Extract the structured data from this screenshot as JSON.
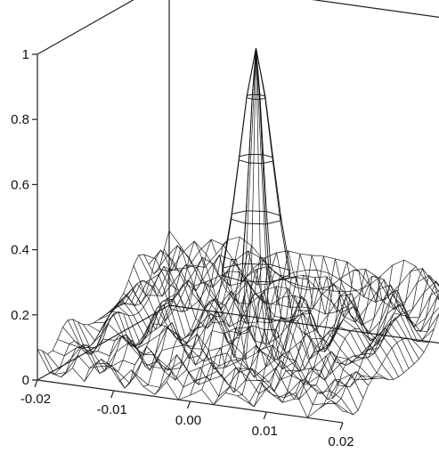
{
  "chart_data": {
    "type": "surface",
    "title": "",
    "xlabel": "",
    "ylabel": "",
    "zlabel": "",
    "x_ticks": [
      "-0.02",
      "-0.01",
      "0.00",
      "0.01",
      "0.02"
    ],
    "z_ticks": [
      "0",
      "0.2",
      "0.4",
      "0.6",
      "0.8",
      "1"
    ],
    "x_range": [
      -0.02,
      0.02
    ],
    "y_range": [
      -0.02,
      0.02
    ],
    "z_range": [
      0,
      1
    ],
    "grid": false,
    "surface": {
      "kind": "sinc-like peak with ripples",
      "peak_value": 0.97,
      "peak_x": 0.0,
      "peak_y": 0.0,
      "background_level": 0.18,
      "ripple_amplitude": 0.12
    }
  }
}
